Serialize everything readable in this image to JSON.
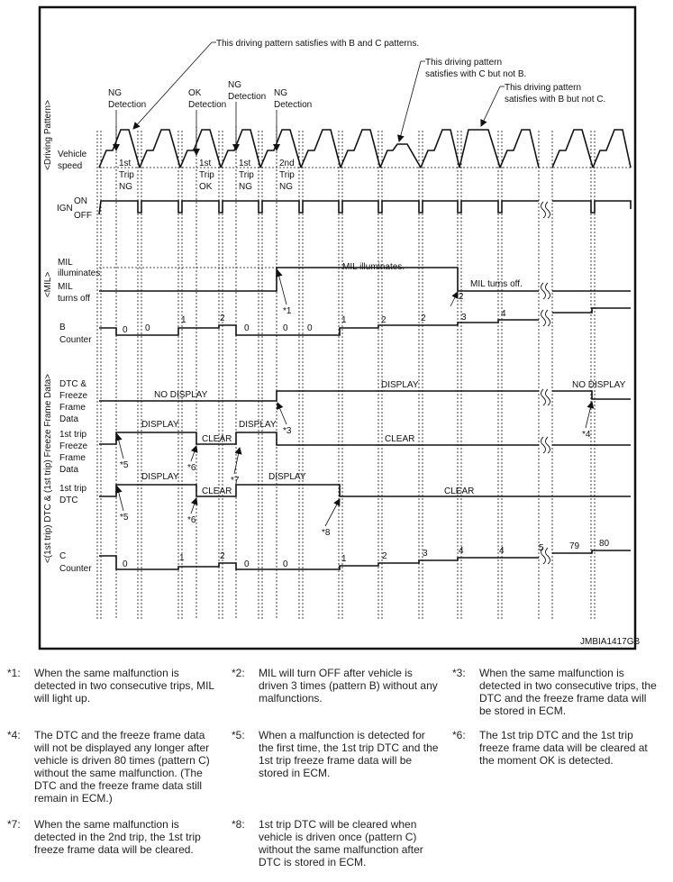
{
  "code": "JMBIA1417GB",
  "sections": {
    "driving_pattern": "<Driving Pattern>",
    "mil": "<MIL>",
    "dtc": "<(1st trip) DTC & (1st trip) Freeze Frame Data>"
  },
  "row_labels": {
    "vehicle_speed": [
      "Vehicle",
      "speed"
    ],
    "ign": "IGN",
    "ign_on": "ON",
    "ign_off": "OFF",
    "mil_illuminates": [
      "MIL",
      "illuminates"
    ],
    "mil_turns_off": [
      "MIL",
      "turns off"
    ],
    "b_counter": [
      "B",
      "Counter"
    ],
    "dtc_ffd": [
      "DTC &",
      "Freeze",
      "Frame",
      "Data"
    ],
    "first_trip_ffd": [
      "1st trip",
      "Freeze",
      "Frame",
      "Data"
    ],
    "first_trip_dtc": [
      "1st trip",
      "DTC"
    ],
    "c_counter": [
      "C",
      "Counter"
    ]
  },
  "callouts": {
    "pattern_bc": "This driving pattern satisfies with B and C patterns.",
    "pattern_c_not_b": [
      "This driving pattern",
      "satisfies with C but not B."
    ],
    "pattern_b_not_c": [
      "This driving pattern",
      "satisfies with B but not C."
    ]
  },
  "detections": [
    [
      "NG",
      "Detection"
    ],
    [
      "OK",
      "Detection"
    ],
    [
      "NG",
      "Detection"
    ],
    [
      "NG",
      "Detection"
    ]
  ],
  "trips": [
    [
      "1st",
      "Trip",
      "NG"
    ],
    [
      "1st",
      "Trip",
      "OK"
    ],
    [
      "1st",
      "Trip",
      "NG"
    ],
    [
      "2nd",
      "Trip",
      "NG"
    ]
  ],
  "states": {
    "mil_illuminates": "MIL illuminates.",
    "mil_turns_off": "MIL turns off.",
    "no_display": "NO DISPLAY",
    "display": "DISPLAY",
    "clear": "CLEAR"
  },
  "b_counter_values": [
    "0",
    "0",
    "1",
    "2",
    "0",
    "0",
    "0",
    "1",
    "2",
    "2",
    "3",
    "4"
  ],
  "c_counter_values": [
    "0",
    "1",
    "2",
    "0",
    "0",
    "1",
    "2",
    "3",
    "4",
    "4",
    "5",
    "79",
    "80"
  ],
  "markers": [
    "*1",
    "*2",
    "*3",
    "*4",
    "*5",
    "*6",
    "*7",
    "*8",
    "*5",
    "*6"
  ],
  "notes": [
    {
      "num": "*1:",
      "text": "When the same malfunction is detected in two consecutive trips, MIL will light up."
    },
    {
      "num": "*2:",
      "text": "MIL will turn OFF after vehicle is driven 3 times (pattern B) without any malfunctions."
    },
    {
      "num": "*3:",
      "text": "When the same malfunction is detected in two consecutive trips, the DTC and the freeze frame data will be stored in ECM."
    },
    {
      "num": "*4:",
      "text": "The DTC and the freeze frame data will not be displayed any longer after vehicle is driven 80 times (pattern C) without the same malfunction. (The DTC and the freeze frame data still remain in ECM.)"
    },
    {
      "num": "*5:",
      "text": "When a malfunction is detected for the first time, the 1st trip DTC and the 1st trip freeze frame data will be stored in ECM."
    },
    {
      "num": "*6:",
      "text": "The 1st trip DTC and the 1st trip freeze frame data will be cleared at the moment OK is detected."
    },
    {
      "num": "*7:",
      "text": "When the same malfunction is detected in the 2nd trip, the 1st trip freeze frame data will be cleared."
    },
    {
      "num": "*8:",
      "text": "1st trip DTC will be cleared when vehicle is driven once (pattern C) without the same malfunction after DTC is stored in ECM."
    }
  ]
}
